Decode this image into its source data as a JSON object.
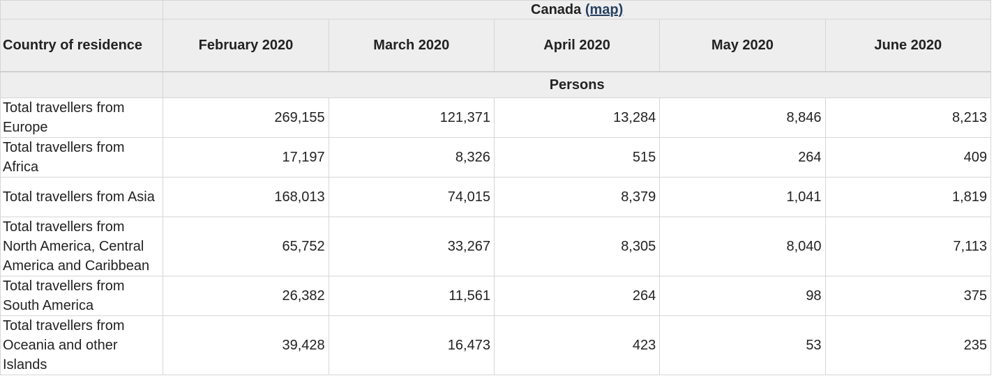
{
  "header": {
    "geo_name": "Canada",
    "map_link": "(map)",
    "country_col": "Country of residence",
    "months": [
      "February 2020",
      "March 2020",
      "April 2020",
      "May 2020",
      "June 2020"
    ],
    "unit": "Persons"
  },
  "rows": [
    {
      "label": "Total travellers from Europe",
      "values": [
        "269,155",
        "121,371",
        "13,284",
        "8,846",
        "8,213"
      ]
    },
    {
      "label": "Total travellers from Africa",
      "values": [
        "17,197",
        "8,326",
        "515",
        "264",
        "409"
      ]
    },
    {
      "label": "Total travellers from Asia",
      "values": [
        "168,013",
        "74,015",
        "8,379",
        "1,041",
        "1,819"
      ]
    },
    {
      "label": "Total travellers from North America, Central America and Caribbean",
      "values": [
        "65,752",
        "33,267",
        "8,305",
        "8,040",
        "7,113"
      ]
    },
    {
      "label": "Total travellers from South America",
      "values": [
        "26,382",
        "11,561",
        "264",
        "98",
        "375"
      ]
    },
    {
      "label": "Total travellers from Oceania and other Islands",
      "values": [
        "39,428",
        "16,473",
        "423",
        "53",
        "235"
      ]
    }
  ]
}
